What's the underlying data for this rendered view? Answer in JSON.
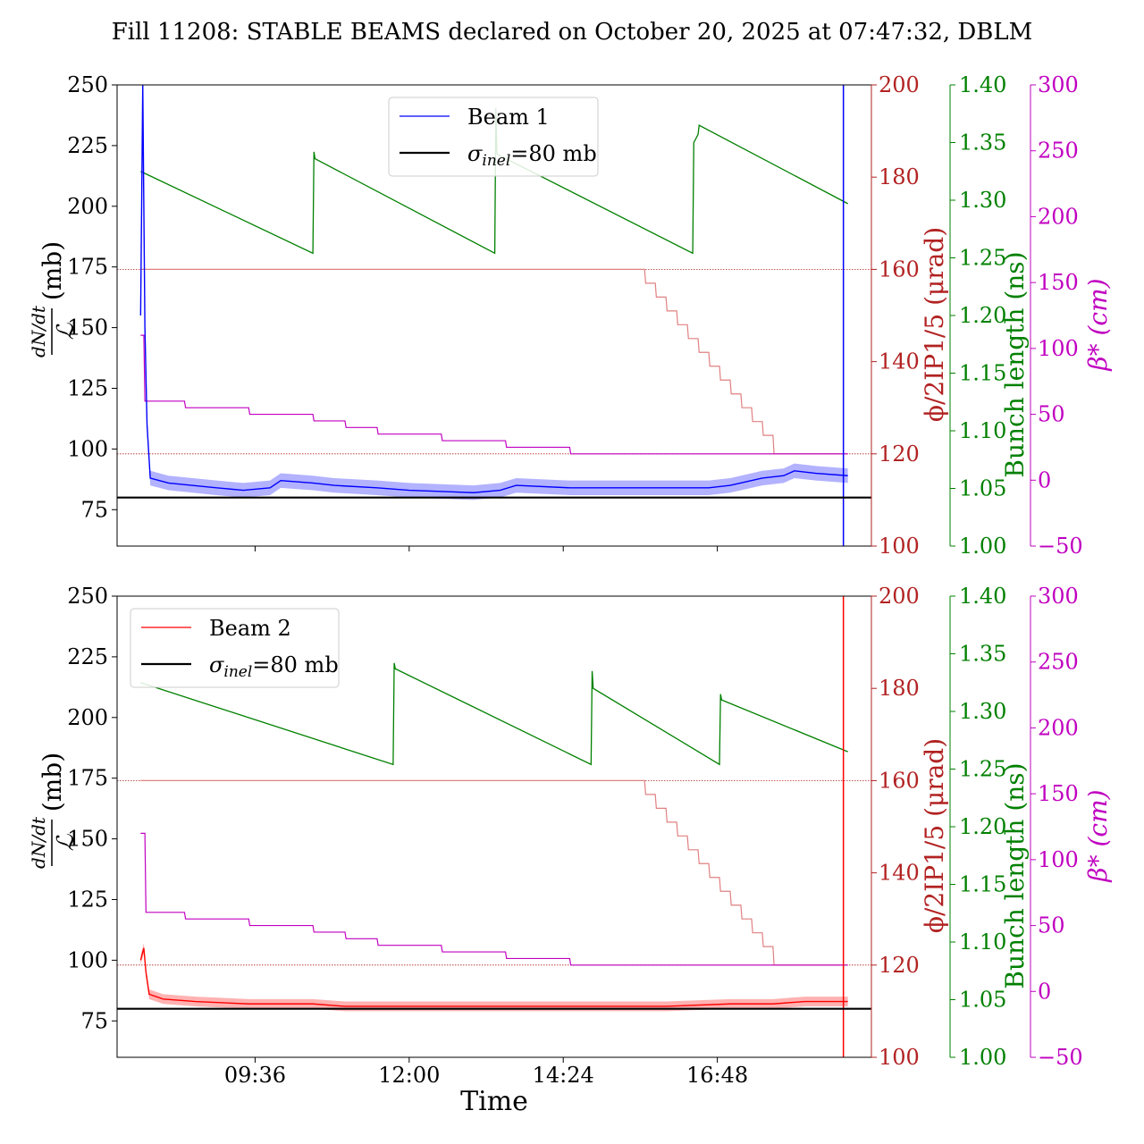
{
  "title": "Fill 11208: STABLE BEAMS declared on October 20, 2025 at 07:47:32, DBLM",
  "colors": {
    "beam1": "#0000ff",
    "beam2": "#ff0000",
    "phi": "#b22222",
    "bunch": "#008000",
    "beta": "#c000c0",
    "sigma": "#000000"
  },
  "chart_data": {
    "type": "line",
    "x_axis": {
      "label": "Time",
      "tick_labels": [
        "09:36",
        "12:00",
        "14:24",
        "16:48"
      ],
      "tick_positions": [
        "09:36",
        "12:00",
        "14:24",
        "16:48"
      ],
      "range": [
        "07:47",
        "18:50"
      ]
    },
    "axes": {
      "left": {
        "label_numerator": "dN/dt",
        "label_denominator": "ℒ",
        "unit": "(mb)",
        "range": [
          60,
          250
        ],
        "ticks": [
          75,
          100,
          125,
          150,
          175,
          200,
          225,
          250
        ]
      },
      "phi": {
        "label": "ϕ/2IP1/5 (μrad)",
        "range": [
          100,
          200
        ],
        "ticks": [
          100,
          120,
          140,
          160,
          180,
          200
        ]
      },
      "bunch": {
        "label": "Bunch length (ns)",
        "range": [
          1.0,
          1.4
        ],
        "ticks": [
          "1.00",
          "1.05",
          "1.10",
          "1.15",
          "1.20",
          "1.25",
          "1.30",
          "1.35",
          "1.40"
        ]
      },
      "beta": {
        "label": "β* (cm)",
        "range": [
          -50,
          300
        ],
        "ticks": [
          -50,
          0,
          50,
          100,
          150,
          200,
          250,
          300
        ]
      }
    },
    "sigma_inel_mb": 80,
    "phi_ref_levels": [
      160,
      120
    ],
    "panels": [
      {
        "legend": {
          "entries": [
            "Beam 1",
            "σinel=80 mb"
          ],
          "sigma_label": "σinel=80 mb",
          "sigma_label_parts": [
            "σ",
            "inel",
            "=80 mb"
          ],
          "placement": "top-center"
        },
        "beam": {
          "name": "Beam 1",
          "points": [
            [
              "07:49",
              155
            ],
            [
              "07:51",
              250
            ],
            [
              "07:53",
              150
            ],
            [
              "07:55",
              110
            ],
            [
              "07:58",
              88
            ],
            [
              "08:15",
              86
            ],
            [
              "09:00",
              84
            ],
            [
              "09:25",
              83
            ],
            [
              "09:50",
              84
            ],
            [
              "10:00",
              87
            ],
            [
              "10:30",
              86
            ],
            [
              "10:50",
              85
            ],
            [
              "11:30",
              84
            ],
            [
              "12:00",
              83
            ],
            [
              "13:00",
              82
            ],
            [
              "13:25",
              83
            ],
            [
              "13:40",
              85
            ],
            [
              "14:30",
              84
            ],
            [
              "15:30",
              84
            ],
            [
              "16:40",
              84
            ],
            [
              "17:00",
              85
            ],
            [
              "17:30",
              88
            ],
            [
              "17:50",
              89
            ],
            [
              "18:00",
              91
            ],
            [
              "18:20",
              90
            ],
            [
              "18:50",
              89
            ]
          ],
          "band_halfwidth": 3
        },
        "bunch_length": [
          [
            "07:49",
            1.325
          ],
          [
            "10:30",
            1.254
          ],
          [
            "10:31",
            1.342
          ],
          [
            "10:32",
            1.336
          ],
          [
            "13:20",
            1.254
          ],
          [
            "13:21",
            1.38
          ],
          [
            "13:22",
            1.34
          ],
          [
            "16:25",
            1.254
          ],
          [
            "16:26",
            1.35
          ],
          [
            "16:30",
            1.357
          ],
          [
            "16:31",
            1.365
          ],
          [
            "18:50",
            1.297
          ]
        ],
        "beta_steps": [
          [
            "07:49",
            110
          ],
          [
            "07:52",
            110
          ],
          [
            "07:53",
            60
          ],
          [
            "08:30",
            60
          ],
          [
            "08:31",
            55
          ],
          [
            "09:30",
            55
          ],
          [
            "09:31",
            50
          ],
          [
            "10:30",
            50
          ],
          [
            "10:31",
            45
          ],
          [
            "11:00",
            45
          ],
          [
            "11:01",
            40
          ],
          [
            "11:30",
            40
          ],
          [
            "11:31",
            35
          ],
          [
            "12:30",
            35
          ],
          [
            "12:31",
            30
          ],
          [
            "13:30",
            30
          ],
          [
            "13:31",
            25
          ],
          [
            "14:30",
            25
          ],
          [
            "14:31",
            20
          ],
          [
            "18:50",
            20
          ]
        ],
        "phi_steps": [
          [
            "07:49",
            160
          ],
          [
            "15:40",
            160
          ],
          [
            "15:41",
            157
          ],
          [
            "15:50",
            157
          ],
          [
            "15:51",
            154
          ],
          [
            "16:00",
            154
          ],
          [
            "16:01",
            151
          ],
          [
            "16:10",
            151
          ],
          [
            "16:11",
            148
          ],
          [
            "16:20",
            148
          ],
          [
            "16:21",
            145
          ],
          [
            "16:30",
            145
          ],
          [
            "16:31",
            142
          ],
          [
            "16:40",
            142
          ],
          [
            "16:41",
            139
          ],
          [
            "16:50",
            139
          ],
          [
            "16:51",
            136
          ],
          [
            "17:00",
            136
          ],
          [
            "17:01",
            133
          ],
          [
            "17:10",
            133
          ],
          [
            "17:11",
            130
          ],
          [
            "17:20",
            130
          ],
          [
            "17:21",
            127
          ],
          [
            "17:30",
            127
          ],
          [
            "17:31",
            124
          ],
          [
            "17:40",
            124
          ],
          [
            "17:41",
            120
          ],
          [
            "18:50",
            120
          ]
        ]
      },
      {
        "legend": {
          "entries": [
            "Beam 2",
            "σinel=80 mb"
          ],
          "sigma_label": "σinel=80 mb",
          "sigma_label_parts": [
            "σ",
            "inel",
            "=80 mb"
          ],
          "placement": "upper-left"
        },
        "beam": {
          "name": "Beam 2",
          "points": [
            [
              "07:49",
              100
            ],
            [
              "07:52",
              105
            ],
            [
              "07:54",
              95
            ],
            [
              "07:57",
              86
            ],
            [
              "08:10",
              84
            ],
            [
              "08:40",
              83
            ],
            [
              "09:30",
              82
            ],
            [
              "10:30",
              82
            ],
            [
              "11:00",
              81
            ],
            [
              "12:00",
              81
            ],
            [
              "13:00",
              81
            ],
            [
              "14:00",
              81
            ],
            [
              "15:00",
              81
            ],
            [
              "16:00",
              81
            ],
            [
              "17:00",
              82
            ],
            [
              "17:40",
              82
            ],
            [
              "18:10",
              83
            ],
            [
              "18:50",
              83
            ]
          ],
          "band_halfwidth": 2
        },
        "bunch_length": [
          [
            "07:49",
            1.325
          ],
          [
            "11:45",
            1.254
          ],
          [
            "11:46",
            1.342
          ],
          [
            "11:47",
            1.337
          ],
          [
            "14:50",
            1.254
          ],
          [
            "14:51",
            1.335
          ],
          [
            "14:52",
            1.32
          ],
          [
            "16:50",
            1.254
          ],
          [
            "16:51",
            1.315
          ],
          [
            "16:52",
            1.31
          ],
          [
            "18:50",
            1.265
          ]
        ],
        "beta_steps": [
          [
            "07:49",
            120
          ],
          [
            "07:53",
            120
          ],
          [
            "07:54",
            60
          ],
          [
            "08:30",
            60
          ],
          [
            "08:31",
            55
          ],
          [
            "09:30",
            55
          ],
          [
            "09:31",
            50
          ],
          [
            "10:30",
            50
          ],
          [
            "10:31",
            45
          ],
          [
            "11:00",
            45
          ],
          [
            "11:01",
            40
          ],
          [
            "11:30",
            40
          ],
          [
            "11:31",
            35
          ],
          [
            "12:30",
            35
          ],
          [
            "12:31",
            30
          ],
          [
            "13:30",
            30
          ],
          [
            "13:31",
            25
          ],
          [
            "14:30",
            25
          ],
          [
            "14:31",
            20
          ],
          [
            "18:50",
            20
          ]
        ],
        "phi_steps": [
          [
            "07:49",
            160
          ],
          [
            "15:40",
            160
          ],
          [
            "15:41",
            157
          ],
          [
            "15:50",
            157
          ],
          [
            "15:51",
            154
          ],
          [
            "16:00",
            154
          ],
          [
            "16:01",
            151
          ],
          [
            "16:10",
            151
          ],
          [
            "16:11",
            148
          ],
          [
            "16:20",
            148
          ],
          [
            "16:21",
            145
          ],
          [
            "16:30",
            145
          ],
          [
            "16:31",
            142
          ],
          [
            "16:40",
            142
          ],
          [
            "16:41",
            139
          ],
          [
            "16:50",
            139
          ],
          [
            "16:51",
            136
          ],
          [
            "17:00",
            136
          ],
          [
            "17:01",
            133
          ],
          [
            "17:10",
            133
          ],
          [
            "17:11",
            130
          ],
          [
            "17:20",
            130
          ],
          [
            "17:21",
            127
          ],
          [
            "17:30",
            127
          ],
          [
            "17:31",
            124
          ],
          [
            "17:40",
            124
          ],
          [
            "17:41",
            120
          ],
          [
            "18:50",
            120
          ]
        ]
      }
    ]
  }
}
